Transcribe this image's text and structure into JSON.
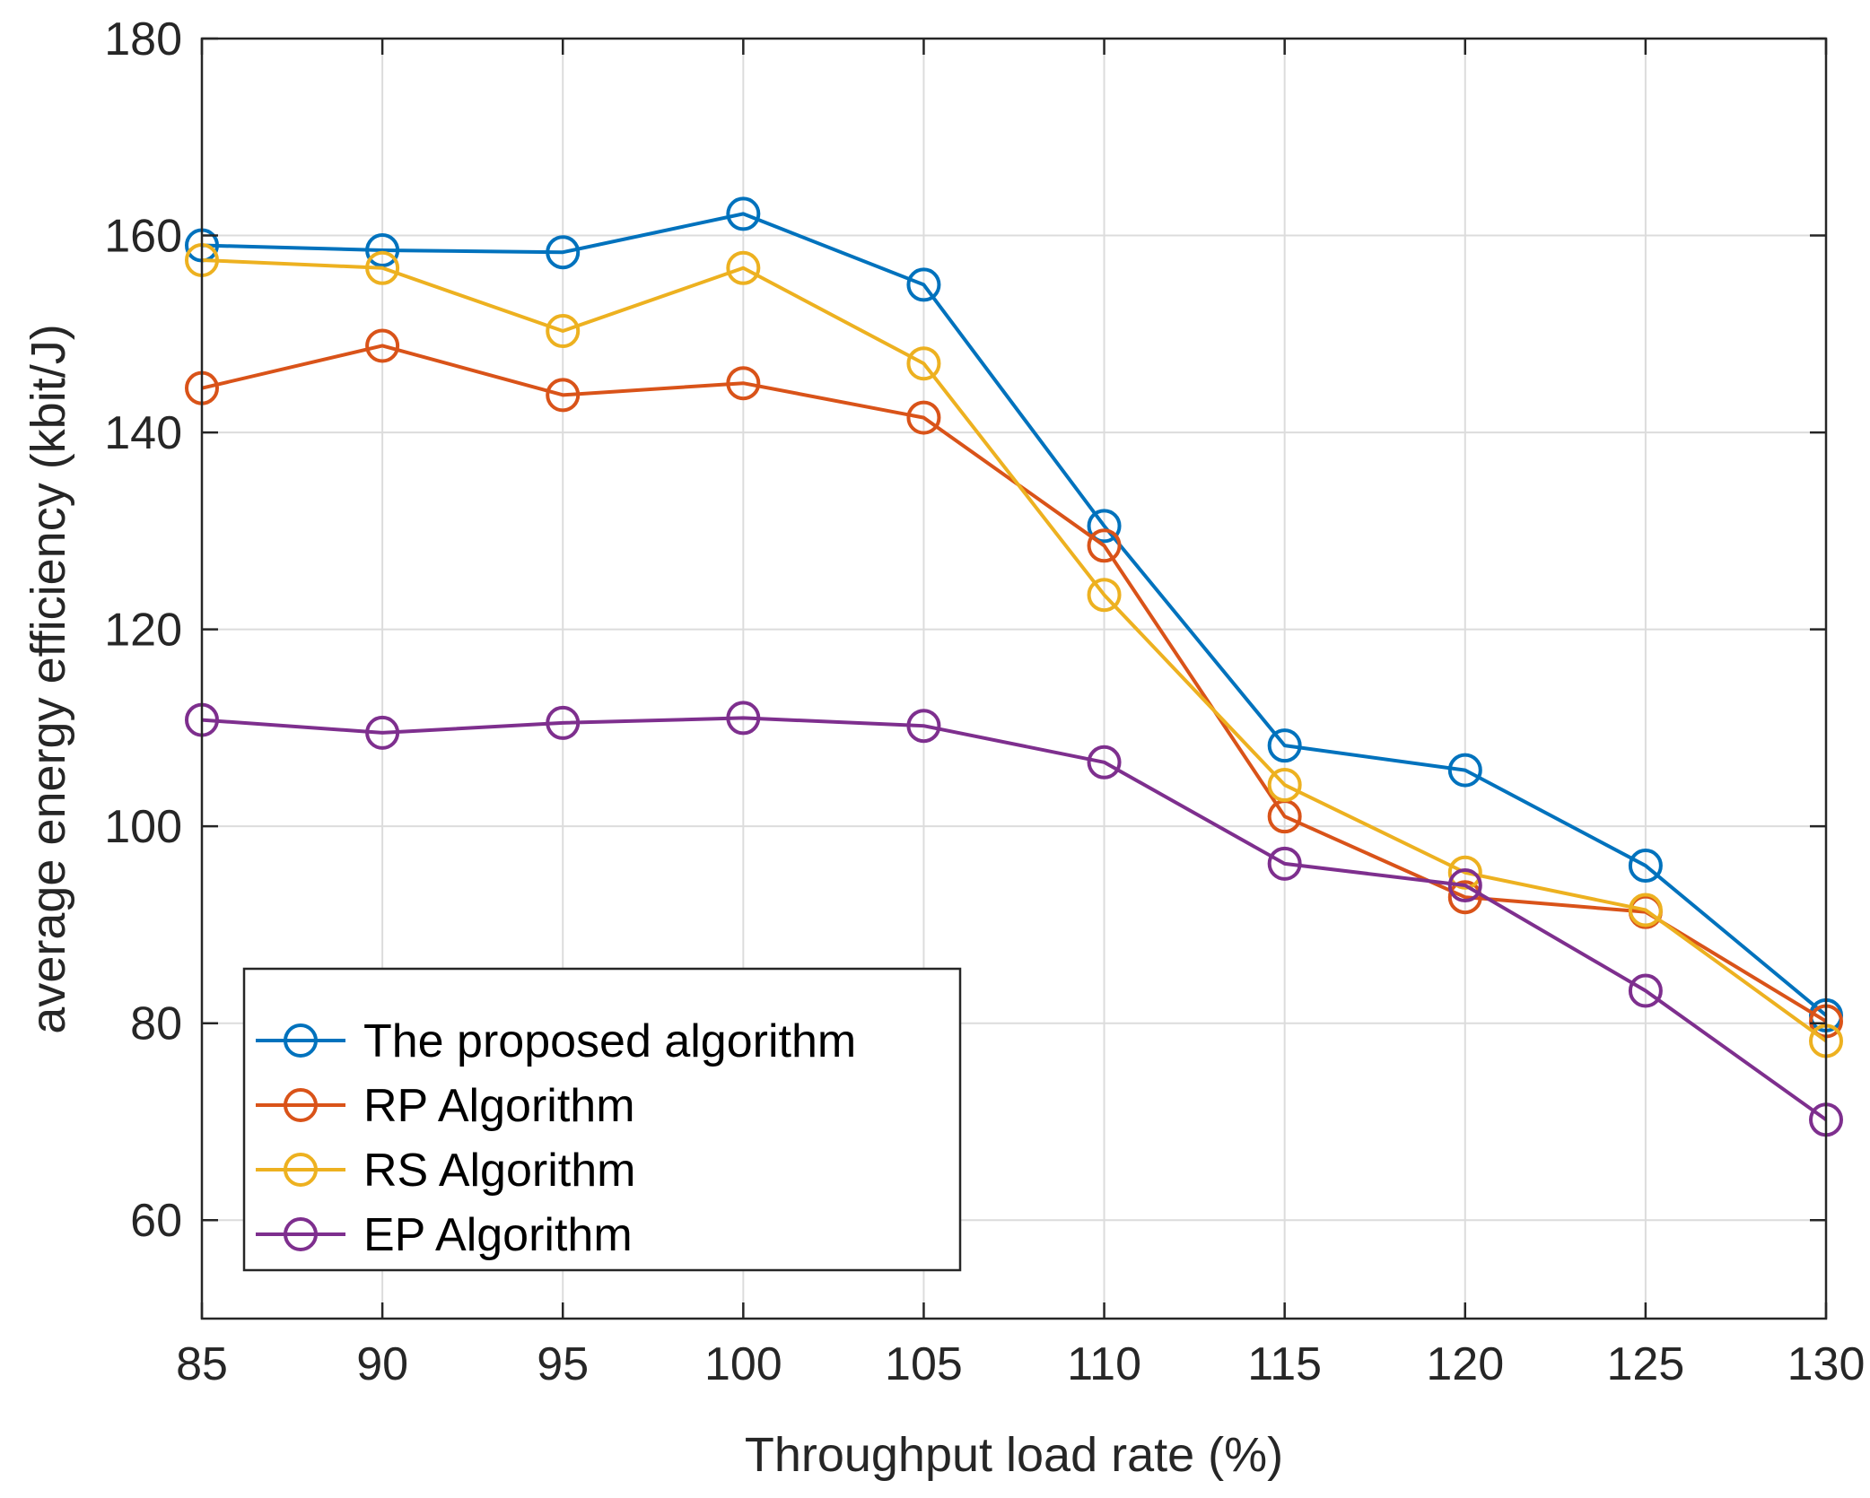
{
  "chart_data": {
    "type": "line",
    "title": "",
    "xlabel": "Throughput load rate (%)",
    "ylabel": "average energy efficiency (kbit/J)",
    "x": [
      85,
      90,
      95,
      100,
      105,
      110,
      115,
      120,
      125,
      130
    ],
    "xlim": [
      85,
      130
    ],
    "ylim": [
      50,
      180
    ],
    "xticks": [
      "85",
      "90",
      "95",
      "100",
      "105",
      "110",
      "115",
      "120",
      "125",
      "130"
    ],
    "yticks": [
      "60",
      "80",
      "100",
      "120",
      "140",
      "160",
      "180"
    ],
    "grid": true,
    "legend_location": "bottom-left",
    "series": [
      {
        "name": "The proposed algorithm",
        "color": "#0072BD",
        "marker": "circle",
        "values": [
          159,
          158.5,
          158.3,
          162.2,
          155,
          130.5,
          108.2,
          105.7,
          96,
          80.8
        ]
      },
      {
        "name": "RP Algorithm",
        "color": "#D95319",
        "marker": "circle",
        "values": [
          144.5,
          148.8,
          143.8,
          145,
          141.5,
          128.5,
          101,
          92.8,
          91.3,
          80.2
        ]
      },
      {
        "name": "RS Algorithm",
        "color": "#EDB120",
        "marker": "circle",
        "values": [
          157.5,
          156.7,
          150.3,
          156.7,
          147,
          123.5,
          104.2,
          95.3,
          91.5,
          78.2
        ]
      },
      {
        "name": "EP Algorithm",
        "color": "#7E2F8E",
        "marker": "circle",
        "values": [
          110.8,
          109.5,
          110.5,
          111,
          110.2,
          106.5,
          96.2,
          94,
          83.3,
          70.2
        ]
      }
    ]
  }
}
